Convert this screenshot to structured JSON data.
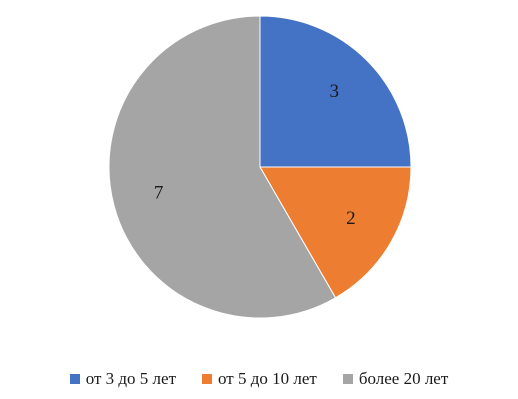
{
  "chart_data": {
    "type": "pie",
    "categories": [
      "от 3 до 5 лет",
      "от 5 до 10 лет",
      "более 20 лет"
    ],
    "values": [
      3,
      2,
      7
    ],
    "data_labels": [
      "3",
      "2",
      "7"
    ],
    "colors": [
      "#4472c4",
      "#ed7d31",
      "#a5a5a5"
    ],
    "start_angle": "12 o'clock",
    "direction": "clockwise",
    "legend_placement": "bottom",
    "title": ""
  }
}
